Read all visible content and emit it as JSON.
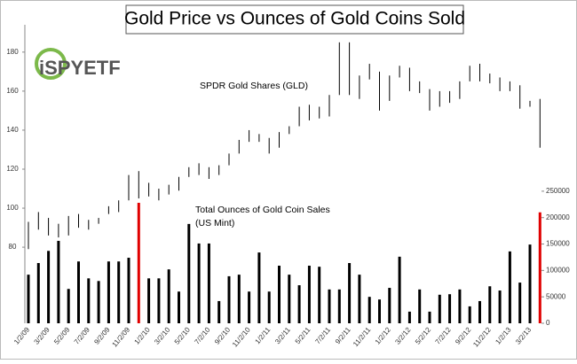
{
  "chart_data": {
    "type": "combo",
    "title": "Gold Price vs Ounces of Gold Coins Sold",
    "logo": "iSPYETF",
    "annotations": [
      "SPDR Gold Shares (GLD)",
      "Total Ounces of Gold Coin Sales",
      "(US Mint)"
    ],
    "categories": [
      "1/2/09",
      null,
      "3/2/09",
      null,
      "5/2/09",
      null,
      "7/2/09",
      null,
      "9/2/09",
      null,
      "11/2/09",
      null,
      "1/2/10",
      null,
      "3/2/10",
      null,
      "5/2/10",
      null,
      "7/2/10",
      null,
      "9/2/10",
      null,
      "11/2/10",
      null,
      "1/2/11",
      null,
      "3/2/11",
      null,
      "5/2/11",
      null,
      "7/2/11",
      null,
      "9/2/11",
      null,
      "11/2/11",
      null,
      "1/2/12",
      null,
      "3/2/12",
      null,
      "5/2/12",
      null,
      "7/2/12",
      null,
      "9/2/12",
      null,
      "11/2/12",
      null,
      "1/2/13",
      null,
      "3/2/13",
      null
    ],
    "price": {
      "color": "#000000",
      "low": [
        79,
        89,
        86,
        85,
        86,
        90,
        89,
        92,
        97,
        98,
        104,
        105,
        106,
        104,
        107,
        109,
        116,
        117,
        115,
        117,
        122,
        128,
        134,
        134,
        128,
        131,
        138,
        142,
        145,
        146,
        147,
        158,
        158,
        156,
        166,
        150,
        155,
        167,
        160,
        159,
        150,
        152,
        154,
        156,
        165,
        165,
        164,
        160,
        160,
        151,
        152,
        131
      ],
      "high": [
        93,
        98,
        95,
        92,
        96,
        97,
        94,
        95,
        101,
        104,
        117,
        119,
        113,
        110,
        112,
        116,
        121,
        123,
        121,
        122,
        128,
        135,
        140,
        138,
        136,
        139,
        142,
        152,
        153,
        152,
        158,
        185,
        185,
        168,
        174,
        170,
        168,
        173,
        172,
        165,
        161,
        160,
        160,
        165,
        173,
        174,
        169,
        167,
        165,
        163,
        155,
        156
      ]
    },
    "coins": {
      "values": [
        92000,
        114000,
        137000,
        156000,
        65000,
        117000,
        85000,
        80000,
        117000,
        117000,
        124000,
        228000,
        85000,
        85000,
        102000,
        60000,
        188000,
        151000,
        151000,
        42000,
        89000,
        92000,
        60000,
        134000,
        60000,
        109000,
        92000,
        72000,
        109000,
        107000,
        64000,
        64000,
        114000,
        92000,
        50000,
        45000,
        67000,
        126000,
        22000,
        64000,
        22000,
        54000,
        55000,
        64000,
        32000,
        42000,
        70000,
        62000,
        136000,
        77000,
        149000,
        210000
      ],
      "colors": [
        "#000000",
        "#000000",
        "#000000",
        "#000000",
        "#000000",
        "#000000",
        "#000000",
        "#000000",
        "#000000",
        "#000000",
        "#000000",
        "#e00000",
        "#000000",
        "#000000",
        "#000000",
        "#000000",
        "#000000",
        "#000000",
        "#000000",
        "#000000",
        "#000000",
        "#000000",
        "#000000",
        "#000000",
        "#000000",
        "#000000",
        "#000000",
        "#000000",
        "#000000",
        "#000000",
        "#000000",
        "#000000",
        "#000000",
        "#000000",
        "#000000",
        "#000000",
        "#000000",
        "#000000",
        "#000000",
        "#000000",
        "#000000",
        "#000000",
        "#000000",
        "#000000",
        "#000000",
        "#000000",
        "#000000",
        "#000000",
        "#000000",
        "#000000",
        "#000000",
        "#e00000"
      ]
    },
    "ylim": [
      41,
      194
    ],
    "yticks": [
      80,
      100,
      120,
      140,
      160,
      180
    ],
    "y2lim": [
      0,
      565000
    ],
    "y2ticks": [
      0,
      50000,
      100000,
      150000,
      200000,
      250000
    ]
  }
}
